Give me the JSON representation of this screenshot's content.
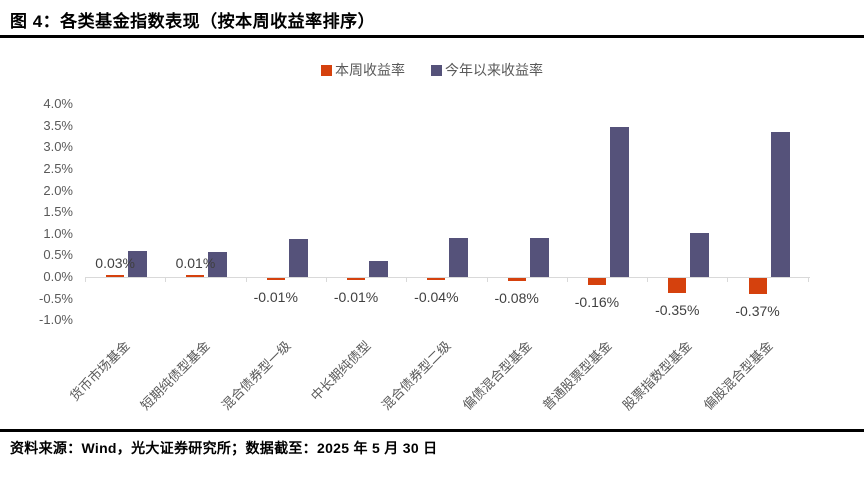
{
  "title": "图 4：各类基金指数表现（按本周收益率排序）",
  "source_note": "资料来源：Wind，光大证券研究所；数据截至：2025 年 5 月 30 日",
  "colors": {
    "week_bar": "#D5410D",
    "ytd_bar": "#55527A",
    "axis": "#D9D9D9",
    "axis_text": "#595959",
    "value_label_text": "#3F3F3F",
    "divider": "#000000"
  },
  "chart_data": {
    "type": "bar",
    "title": "各类基金指数表现（按本周收益率排序）",
    "categories": [
      "货币市场基金",
      "短期纯债型基金",
      "混合债券型一级",
      "中长期纯债型",
      "混合债券型二级",
      "偏债混合型基金",
      "普通股票型基金",
      "股票指数型基金",
      "偏股混合型基金"
    ],
    "series": [
      {
        "name": "本周收益率",
        "color": "#D5410D",
        "values": [
          0.03,
          0.01,
          -0.01,
          -0.01,
          -0.04,
          -0.08,
          -0.16,
          -0.35,
          -0.37
        ],
        "labels": [
          "0.03%",
          "0.01%",
          "-0.01%",
          "-0.01%",
          "-0.04%",
          "-0.08%",
          "-0.16%",
          "-0.35%",
          "-0.37%"
        ]
      },
      {
        "name": "今年以来收益率",
        "color": "#55527A",
        "values": [
          0.6,
          0.58,
          0.88,
          0.38,
          0.9,
          0.9,
          3.47,
          1.02,
          3.36
        ],
        "labels": []
      }
    ],
    "ylabel": "",
    "xlabel": "",
    "ylim": [
      -1.0,
      4.0
    ],
    "ytick_step": 0.5,
    "ytick_labels": [
      "4.0%",
      "3.5%",
      "3.0%",
      "2.5%",
      "2.0%",
      "1.5%",
      "1.0%",
      "0.5%",
      "0.0%",
      "-0.5%",
      "-1.0%"
    ],
    "grid": false,
    "legend_position": "top-center",
    "value_labels_series": "本周收益率"
  }
}
